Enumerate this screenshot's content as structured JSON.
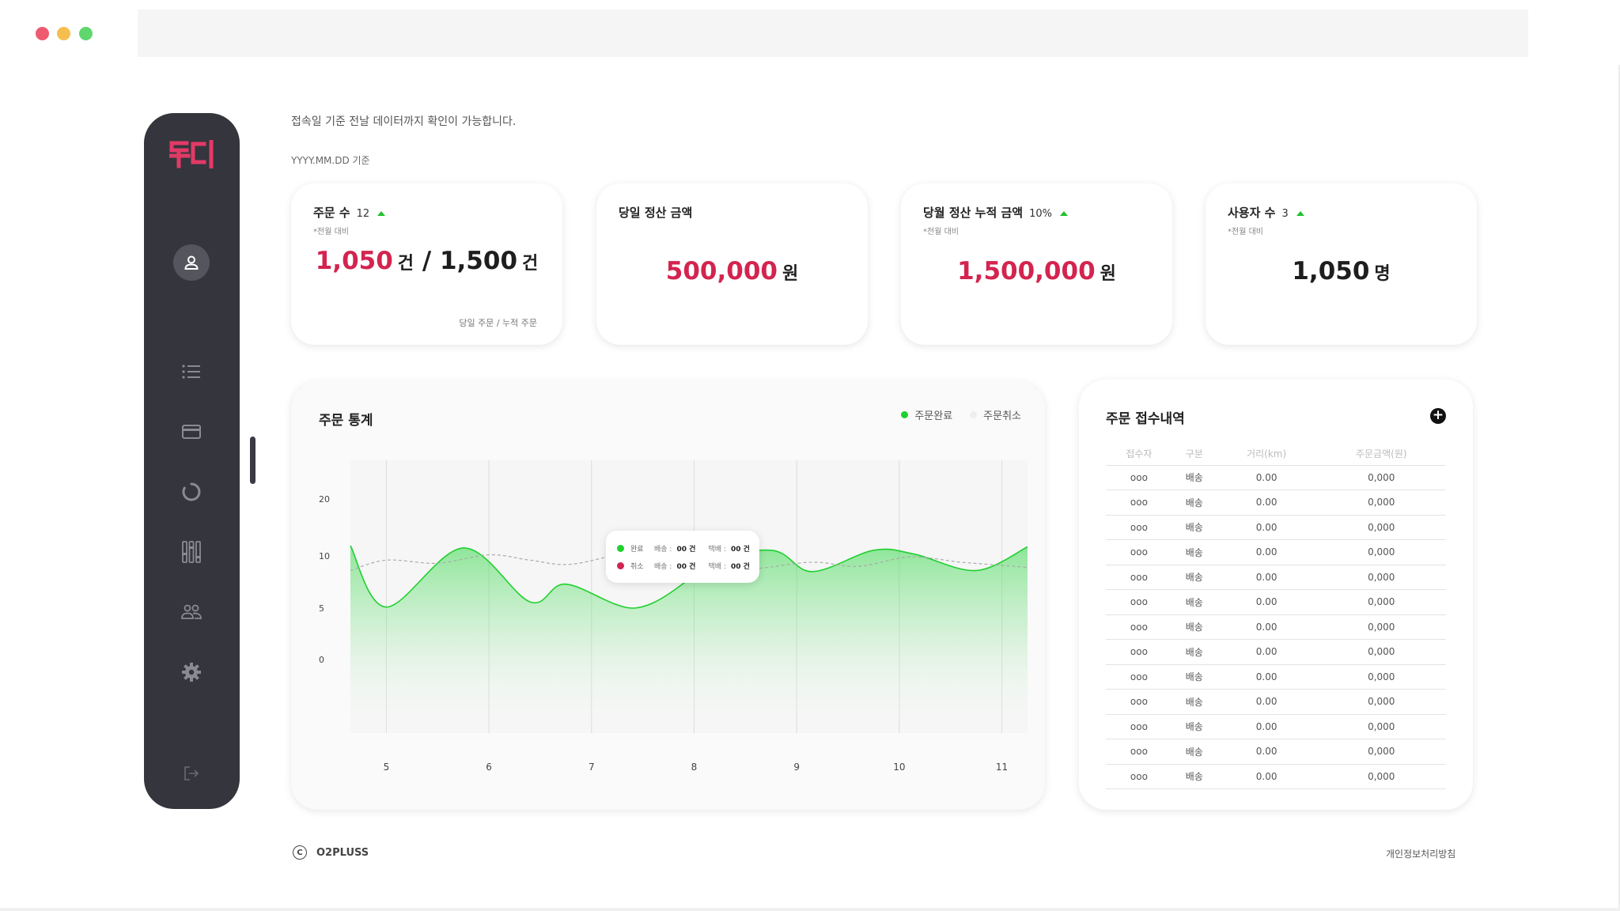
{
  "colors": {
    "sidebar_bg": "#35353d",
    "brand_pink": "#e23a67",
    "accent_red": "#d3244f",
    "complete_green": "#1fd02f",
    "cancel_gray": "#eeeeee",
    "traffic_red": "#ee5a6f",
    "traffic_yellow": "#f6be4f",
    "traffic_green": "#5fd76d"
  },
  "sidebar": {
    "logo_text": "투디",
    "nav": [
      {
        "name": "profile",
        "icon": "user-icon"
      },
      {
        "name": "list",
        "icon": "list-icon"
      },
      {
        "name": "payment",
        "icon": "credit-card-icon"
      },
      {
        "name": "statistics",
        "icon": "loading-ring-icon"
      },
      {
        "name": "settings-sliders",
        "icon": "sliders-icon"
      },
      {
        "name": "users",
        "icon": "users-icon"
      },
      {
        "name": "settings",
        "icon": "gear-icon"
      },
      {
        "name": "logout",
        "icon": "logout-icon"
      }
    ]
  },
  "header": {
    "notice": "접속일 기준 전날 데이터까지 확인이 가능합니다.",
    "date_basis": "YYYY.MM.DD 기준"
  },
  "cards": {
    "orders": {
      "title": "주문 수",
      "delta": "12",
      "sub": "*전월 대비",
      "value_today": "1,050",
      "unit_today": "건",
      "separator": "/",
      "value_total": "1,500",
      "unit_total": "건",
      "foot": "당일 주문 / 누적 주문"
    },
    "daily_settlement": {
      "title": "당일 정산 금액",
      "value": "500,000",
      "unit": "원"
    },
    "monthly_settlement": {
      "title": "당월 정산 누적 금액",
      "delta": "10%",
      "sub": "*전월 대비",
      "value": "1,500,000",
      "unit": "원"
    },
    "users": {
      "title": "사용자 수",
      "delta": "3",
      "sub": "*전월 대비",
      "value": "1,050",
      "unit": "명"
    }
  },
  "chart_section": {
    "title": "주문 통계",
    "legend_complete": "주문완료",
    "legend_cancel": "주문취소",
    "tooltip": {
      "complete_label": "완료",
      "cancel_label": "취소",
      "delivery_key": "배송 :",
      "parcel_key": "택배 :",
      "complete_delivery": "00 건",
      "complete_parcel": "00 건",
      "cancel_delivery": "00 건",
      "cancel_parcel": "00 건"
    }
  },
  "chart_data": {
    "type": "area",
    "title": "주문 통계",
    "xlabel": "",
    "ylabel": "",
    "x_ticks": [
      5,
      6,
      7,
      8,
      9,
      10,
      11
    ],
    "y_ticks": [
      0,
      5,
      10,
      20
    ],
    "xlim": [
      4.65,
      11.25
    ],
    "grid": "vertical",
    "legend_position": "top-right",
    "series": [
      {
        "name": "주문완료",
        "color": "#1fd02f",
        "x": [
          4.65,
          5.0,
          5.75,
          6.4,
          6.75,
          7.4,
          7.9,
          8.0,
          8.75,
          9.15,
          9.75,
          10.15,
          10.75,
          11.25
        ],
        "y": [
          11.8,
          5.1,
          11.4,
          5.6,
          7.3,
          5.0,
          7.4,
          9.3,
          11.0,
          8.5,
          11.0,
          10.3,
          8.6,
          11.6
        ]
      },
      {
        "name": "주문취소",
        "color": "#aaaaaa",
        "x": [
          4.65,
          5.0,
          5.5,
          6.0,
          6.4,
          6.8,
          7.4,
          7.8,
          8.2,
          8.6,
          9.15,
          9.6,
          10.1,
          10.6,
          11.0,
          11.25
        ],
        "y": [
          8.6,
          9.6,
          9.3,
          10.2,
          9.6,
          9.2,
          10.7,
          10.0,
          9.0,
          8.8,
          9.4,
          9.0,
          9.9,
          9.4,
          9.1,
          8.9
        ]
      }
    ]
  },
  "order_list": {
    "title": "주문 접수내역",
    "add_label": "+",
    "columns": [
      "접수자",
      "구분",
      "거리(km)",
      "주문금액(원)"
    ],
    "rows": [
      [
        "ooo",
        "배송",
        "0.00",
        "0,000"
      ],
      [
        "ooo",
        "배송",
        "0.00",
        "0,000"
      ],
      [
        "ooo",
        "배송",
        "0.00",
        "0,000"
      ],
      [
        "ooo",
        "배송",
        "0.00",
        "0,000"
      ],
      [
        "ooo",
        "배송",
        "0.00",
        "0,000"
      ],
      [
        "ooo",
        "배송",
        "0.00",
        "0,000"
      ],
      [
        "ooo",
        "배송",
        "0.00",
        "0,000"
      ],
      [
        "ooo",
        "배송",
        "0.00",
        "0,000"
      ],
      [
        "ooo",
        "배송",
        "0.00",
        "0,000"
      ],
      [
        "ooo",
        "배송",
        "0.00",
        "0,000"
      ],
      [
        "ooo",
        "배송",
        "0.00",
        "0,000"
      ],
      [
        "ooo",
        "배송",
        "0.00",
        "0,000"
      ],
      [
        "ooo",
        "배송",
        "0.00",
        "0,000"
      ]
    ]
  },
  "footer": {
    "copyright_symbol": "C",
    "brand": "O2PLUSS",
    "privacy": "개인정보처리방침"
  }
}
